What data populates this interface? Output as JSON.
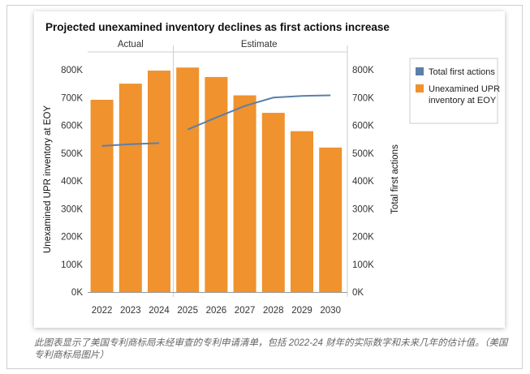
{
  "caption": "此图表显示了美国专利商标局未经审查的专利申请清单，包括 2022-24 财年的实际数字和未来几年的估计值。（美国专利商标局图片）",
  "chart_data": {
    "type": "bar",
    "title": "Projected unexamined inventory declines as first actions increase",
    "categories": [
      "2022",
      "2023",
      "2024",
      "2025",
      "2026",
      "2027",
      "2028",
      "2029",
      "2030"
    ],
    "period_labels": [
      {
        "label": "Actual",
        "from": "2022",
        "to": "2024"
      },
      {
        "label": "Estimate",
        "from": "2025",
        "to": "2030"
      }
    ],
    "ylabel_left": "Unexamined UPR inventory at EOY",
    "ylabel_right": "Total first actions",
    "ylim": [
      0,
      800000
    ],
    "yticks": [
      0,
      100000,
      200000,
      300000,
      400000,
      500000,
      600000,
      700000,
      800000
    ],
    "ytick_labels": [
      "0K",
      "100K",
      "200K",
      "300K",
      "400K",
      "500K",
      "600K",
      "700K",
      "800K"
    ],
    "grid": false,
    "legend_position": "top-right",
    "series": [
      {
        "name": "Unexamined UPR inventory at EOY",
        "type": "bar",
        "color": "#f0922e",
        "values": [
          692000,
          750000,
          797000,
          808000,
          774000,
          708000,
          645000,
          579000,
          520000
        ]
      },
      {
        "name": "Total first actions",
        "type": "line",
        "color": "#5b7fa8",
        "segments": [
          {
            "x": [
              "2022",
              "2023",
              "2024"
            ],
            "values": [
              526000,
              532000,
              536000
            ]
          },
          {
            "x": [
              "2025",
              "2026",
              "2027",
              "2028",
              "2029",
              "2030"
            ],
            "values": [
              585000,
              628000,
              670000,
              700000,
              706000,
              708000
            ]
          }
        ]
      }
    ]
  }
}
